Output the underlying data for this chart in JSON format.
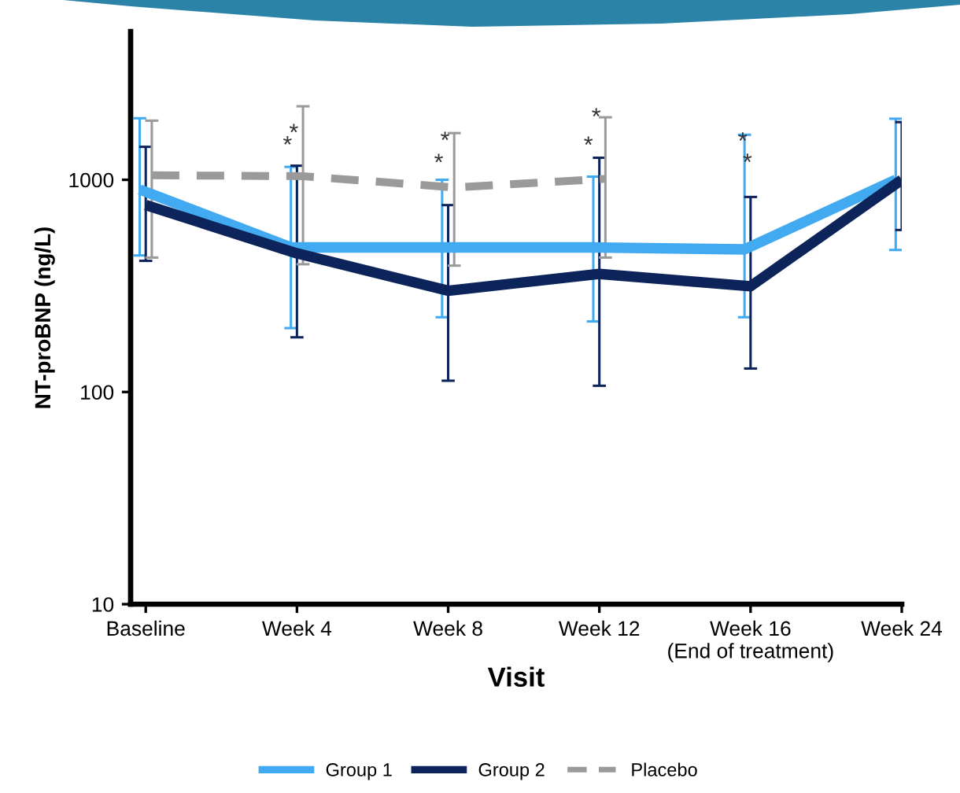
{
  "chart_data": {
    "type": "line",
    "xlabel": "Visit",
    "ylabel": "NT-proBNP (ng/L)",
    "categories": [
      "Baseline",
      "Week 4",
      "Week 8",
      "Week 12",
      "Week 16\n(End of treatment)",
      "Week 24"
    ],
    "series": [
      {
        "name": "Group 1",
        "color": "#41aaf0",
        "line_style": "solid",
        "values": [
          900,
          480,
          480,
          480,
          470,
          1000
        ],
        "errors": [
          [
            440,
            1950
          ],
          [
            200,
            1150
          ],
          [
            225,
            1000
          ],
          [
            215,
            1035
          ],
          [
            225,
            1630
          ],
          [
            467,
            1940
          ]
        ]
      },
      {
        "name": "Group 2",
        "color": "#0c2459",
        "line_style": "solid",
        "values": [
          760,
          450,
          300,
          360,
          315,
          1000
        ],
        "errors": [
          [
            415,
            1430
          ],
          [
            181,
            1165
          ],
          [
            113,
            760
          ],
          [
            107,
            1270
          ],
          [
            129,
            830
          ],
          [
            580,
            1870
          ]
        ]
      },
      {
        "name": "Placebo",
        "color": "#9a9a9a",
        "line_style": "dashed",
        "values": [
          1050,
          1040,
          920,
          1010,
          null,
          null
        ],
        "errors": [
          [
            430,
            1900
          ],
          [
            400,
            2220
          ],
          [
            394,
            1660
          ],
          [
            430,
            1970
          ],
          null,
          null
        ]
      }
    ],
    "log": "y",
    "ylim": [
      10,
      5000
    ],
    "yticks": [
      10,
      100,
      1000
    ],
    "legend": "bottom",
    "annotations": [
      {
        "text": "*",
        "x": "Week 4",
        "y": 1150
      },
      {
        "text": "*",
        "x": "Week 4",
        "y": 1165
      },
      {
        "text": "*",
        "x": "Week 8",
        "y": 1000
      },
      {
        "text": "*",
        "x": "Week 8",
        "y": 760
      },
      {
        "text": "*",
        "x": "Week 12",
        "y": 1035
      },
      {
        "text": "*",
        "x": "Week 12",
        "y": 1270
      },
      {
        "text": "*",
        "x": "Week 16\n(End of treatment)",
        "y": 1630
      },
      {
        "text": "*",
        "x": "Week 16\n(End of treatment)",
        "y": 830
      }
    ]
  }
}
